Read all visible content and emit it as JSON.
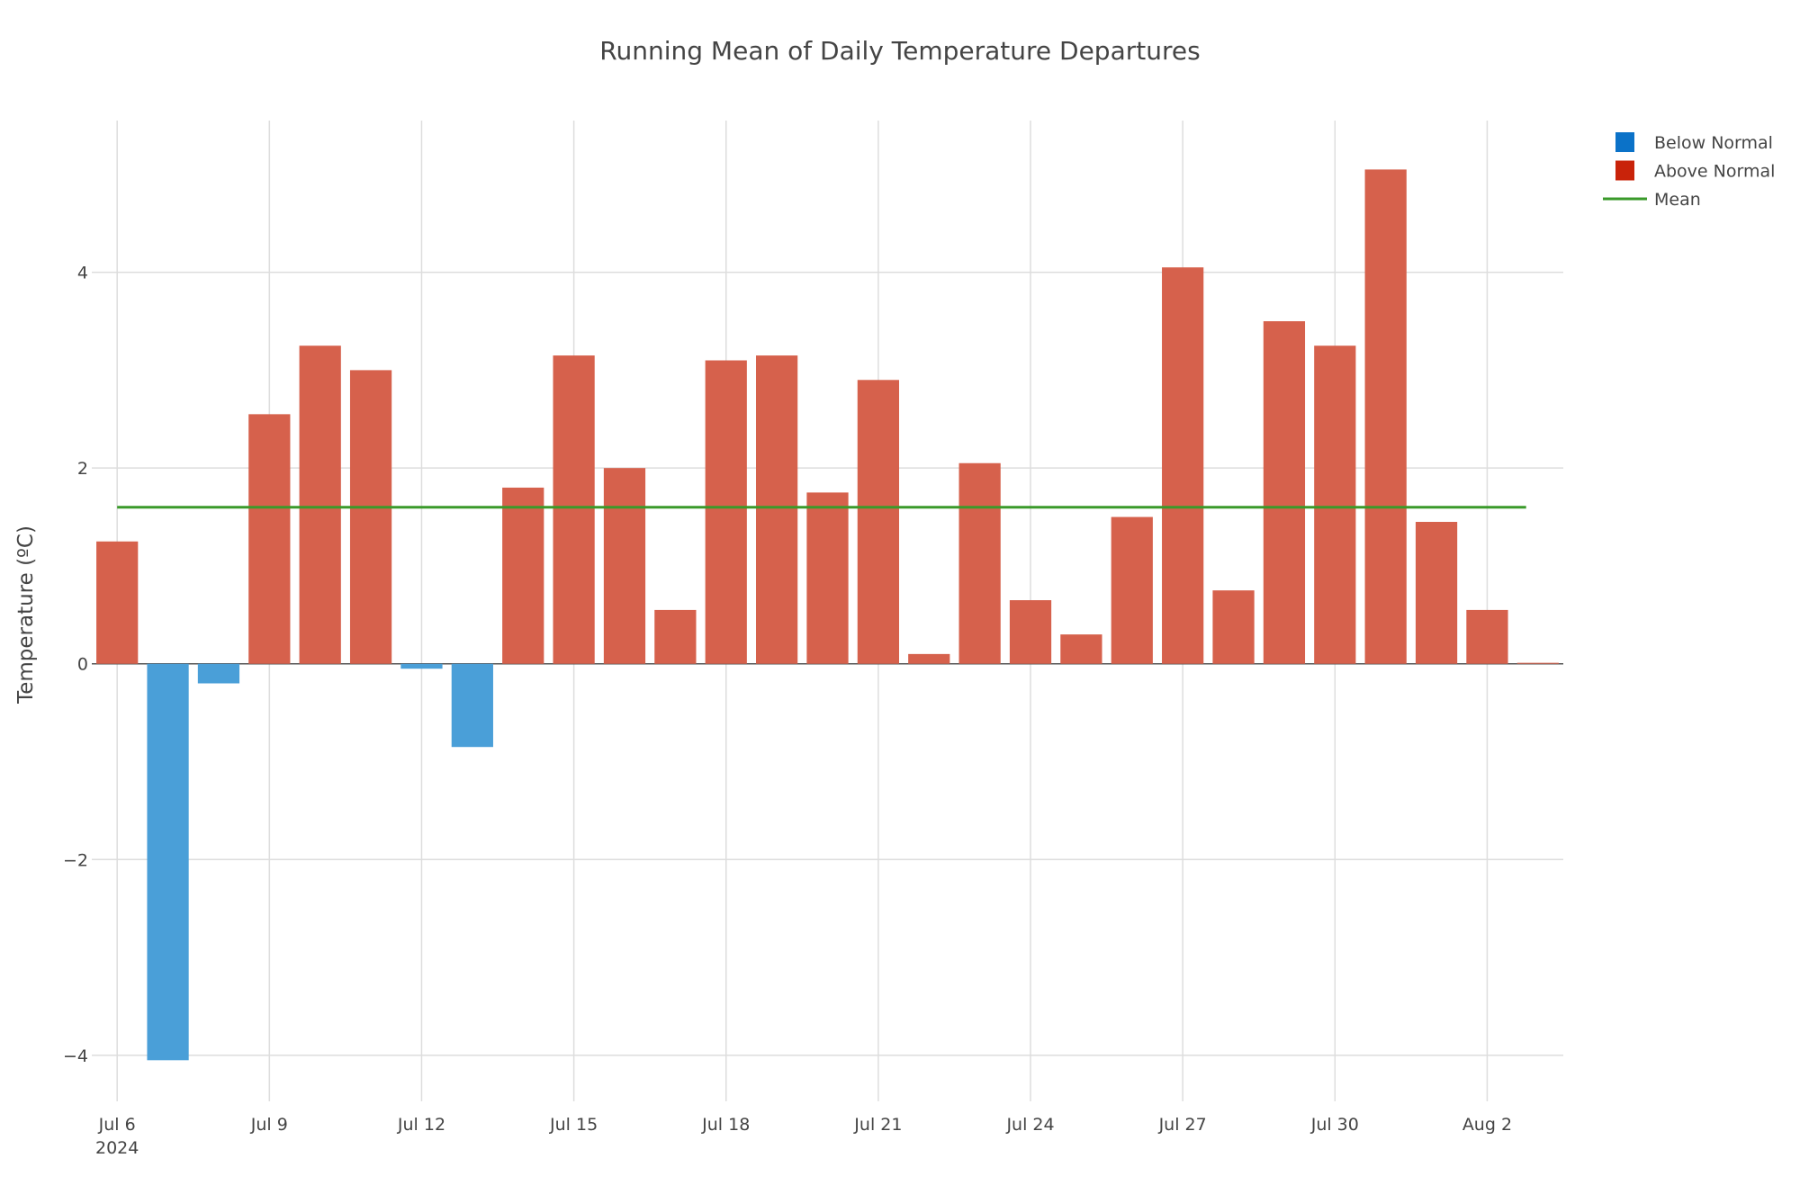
{
  "chart_data": {
    "type": "bar",
    "title": "Running Mean of Daily Temperature Departures",
    "xlabel": "",
    "ylabel": "Temperature (ºC)",
    "categories": [
      "Jul 6",
      "Jul 7",
      "Jul 8",
      "Jul 9",
      "Jul 10",
      "Jul 11",
      "Jul 12",
      "Jul 13",
      "Jul 14",
      "Jul 15",
      "Jul 16",
      "Jul 17",
      "Jul 18",
      "Jul 19",
      "Jul 20",
      "Jul 21",
      "Jul 22",
      "Jul 23",
      "Jul 24",
      "Jul 25",
      "Jul 26",
      "Jul 27",
      "Jul 28",
      "Jul 29",
      "Jul 30",
      "Jul 31",
      "Aug 1",
      "Aug 2",
      "Aug 3"
    ],
    "values": [
      1.25,
      -4.05,
      -0.2,
      2.55,
      3.25,
      3.0,
      -0.05,
      -0.85,
      1.8,
      3.15,
      2.0,
      0.55,
      3.1,
      3.15,
      1.75,
      2.9,
      0.1,
      2.05,
      0.65,
      0.3,
      1.5,
      4.05,
      0.75,
      3.5,
      3.25,
      5.05,
      1.45,
      0.55,
      0.01
    ],
    "mean": 1.6,
    "ylim": [
      -4.47,
      5.55
    ],
    "xlim_days": [
      -0.5,
      28.5
    ],
    "x_ticks": [
      {
        "day": 0,
        "label": "Jul 6",
        "sublabel": "2024"
      },
      {
        "day": 3,
        "label": "Jul 9"
      },
      {
        "day": 6,
        "label": "Jul 12"
      },
      {
        "day": 9,
        "label": "Jul 15"
      },
      {
        "day": 12,
        "label": "Jul 18"
      },
      {
        "day": 15,
        "label": "Jul 21"
      },
      {
        "day": 18,
        "label": "Jul 24"
      },
      {
        "day": 21,
        "label": "Jul 27"
      },
      {
        "day": 24,
        "label": "Jul 30"
      },
      {
        "day": 27,
        "label": "Aug 2"
      }
    ],
    "y_ticks": [
      {
        "v": -4,
        "label": "−4"
      },
      {
        "v": -2,
        "label": "−2"
      },
      {
        "v": 0,
        "label": "0"
      },
      {
        "v": 2,
        "label": "2"
      },
      {
        "v": 4,
        "label": "4"
      }
    ],
    "grid": true,
    "legend_position": "top-right",
    "legend": [
      {
        "name": "Below Normal",
        "kind": "box",
        "color": "#0b72c8"
      },
      {
        "name": "Above Normal",
        "kind": "box",
        "color": "#c9230a"
      },
      {
        "name": "Mean",
        "kind": "line",
        "color": "#3a9a2a"
      }
    ],
    "colors": {
      "below": "#4a9fd8",
      "above": "#d6614c",
      "mean": "#3a9a2a",
      "grid": "#dddddd"
    }
  }
}
